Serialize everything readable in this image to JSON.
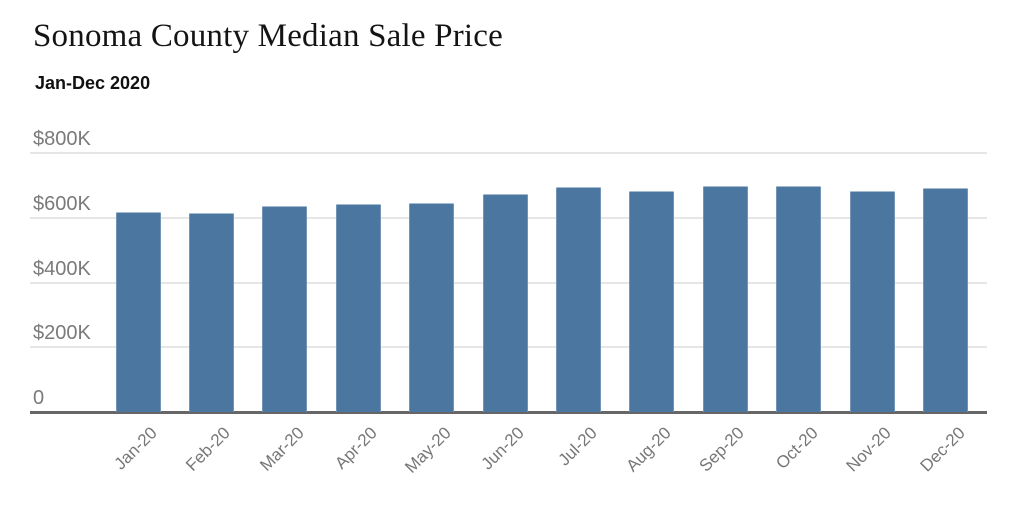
{
  "header": {
    "title": "Sonoma County Median Sale Price",
    "subtitle": "Jan-Dec 2020"
  },
  "chart_data": {
    "type": "bar",
    "title": "Sonoma County Median Sale Price",
    "subtitle": "Jan-Dec 2020",
    "categories": [
      "Jan-20",
      "Feb-20",
      "Mar-20",
      "Apr-20",
      "May-20",
      "Jun-20",
      "Jul-20",
      "Aug-20",
      "Sep-20",
      "Oct-20",
      "Nov-20",
      "Dec-20"
    ],
    "values": [
      620,
      616,
      638,
      643,
      646,
      675,
      697,
      682,
      700,
      700,
      682,
      694
    ],
    "units": "USD thousands",
    "xlabel": "",
    "ylabel": "Median sale price",
    "ylim": [
      0,
      800
    ],
    "grid": true,
    "legend": "none",
    "yticks": [
      {
        "value": 800,
        "label": "$800K"
      },
      {
        "value": 600,
        "label": "$600K"
      },
      {
        "value": 400,
        "label": "$400K"
      },
      {
        "value": 200,
        "label": "$200K"
      },
      {
        "value": 0,
        "label": "0"
      }
    ],
    "colors": {
      "bar": "#4B76A0",
      "gridline": "#e6e6e6",
      "axis": "#666666",
      "tick_label": "#7a7a7a",
      "title_text": "#141414"
    }
  }
}
